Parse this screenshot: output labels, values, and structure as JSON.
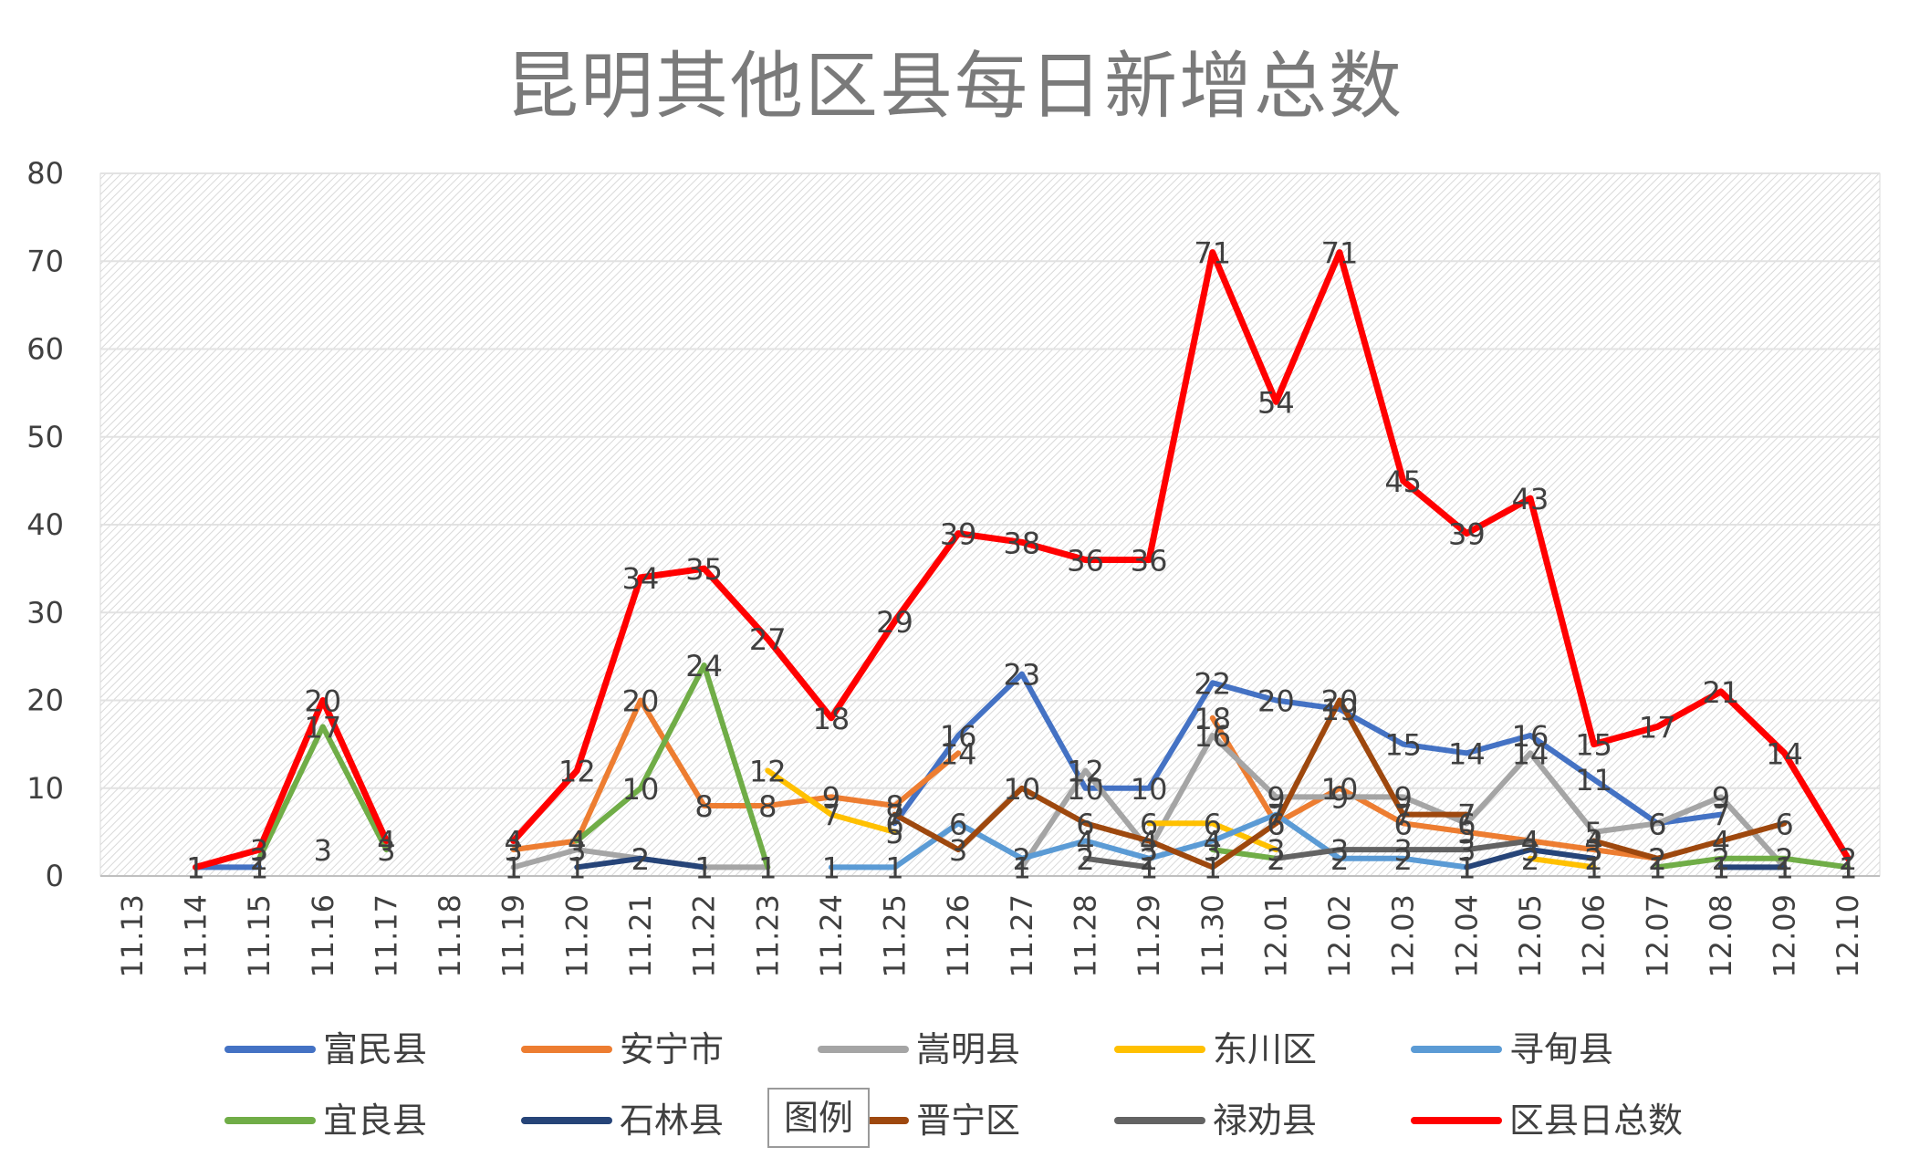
{
  "chart_data": {
    "type": "line",
    "title": "昆明其他区县每日新增总数",
    "ylim": [
      0,
      80
    ],
    "yticks": [
      0,
      10,
      20,
      30,
      40,
      50,
      60,
      70,
      80
    ],
    "grid": true,
    "legend_placement": "bottom",
    "legend_badge": "图例",
    "categories": [
      "11.13",
      "11.14",
      "11.15",
      "11.16",
      "11.17",
      "11.18",
      "11.19",
      "11.20",
      "11.21",
      "11.22",
      "11.23",
      "11.24",
      "11.25",
      "11.26",
      "11.27",
      "11.28",
      "11.29",
      "11.30",
      "12.01",
      "12.02",
      "12.03",
      "12.04",
      "12.05",
      "12.06",
      "12.07",
      "12.08",
      "12.09",
      "12.10"
    ],
    "series": [
      {
        "name": "富民县",
        "color": "#4472C4",
        "values": [
          null,
          1,
          1,
          null,
          null,
          null,
          null,
          null,
          null,
          null,
          null,
          null,
          6,
          16,
          23,
          10,
          10,
          22,
          20,
          19,
          15,
          14,
          16,
          11,
          6,
          7,
          null,
          null
        ]
      },
      {
        "name": "安宁市",
        "color": "#ED7D31",
        "values": [
          null,
          null,
          null,
          null,
          null,
          null,
          3,
          4,
          20,
          8,
          8,
          9,
          8,
          14,
          null,
          null,
          null,
          18,
          6,
          10,
          6,
          5,
          4,
          3,
          2,
          null,
          null,
          1
        ]
      },
      {
        "name": "嵩明县",
        "color": "#A5A5A5",
        "values": [
          null,
          null,
          null,
          null,
          null,
          null,
          1,
          3,
          2,
          1,
          1,
          null,
          null,
          null,
          1,
          12,
          3,
          16,
          9,
          9,
          9,
          6,
          14,
          5,
          6,
          9,
          1,
          null
        ]
      },
      {
        "name": "东川区",
        "color": "#FFC000",
        "values": [
          null,
          null,
          null,
          null,
          null,
          null,
          null,
          null,
          null,
          null,
          12,
          7,
          5,
          null,
          null,
          null,
          6,
          6,
          3,
          null,
          null,
          null,
          2,
          1,
          null,
          null,
          null,
          null
        ]
      },
      {
        "name": "寻甸县",
        "color": "#5B9BD5",
        "values": [
          null,
          null,
          null,
          null,
          null,
          null,
          null,
          null,
          null,
          null,
          null,
          1,
          1,
          6,
          2,
          4,
          2,
          4,
          7,
          2,
          2,
          1,
          null,
          null,
          null,
          null,
          null,
          null
        ]
      },
      {
        "name": "宜良县",
        "color": "#70AD47",
        "values": [
          null,
          null,
          2,
          17,
          3,
          null,
          null,
          4,
          10,
          24,
          1,
          null,
          null,
          null,
          null,
          null,
          null,
          3,
          2,
          null,
          null,
          null,
          null,
          null,
          1,
          2,
          2,
          1
        ]
      },
      {
        "name": "石林县",
        "color": "#264478",
        "values": [
          null,
          null,
          null,
          null,
          null,
          null,
          null,
          1,
          2,
          1,
          null,
          null,
          null,
          null,
          null,
          null,
          null,
          null,
          null,
          null,
          null,
          1,
          3,
          2,
          null,
          1,
          1,
          null
        ]
      },
      {
        "name": "晋宁区",
        "color": "#9E480E",
        "values": [
          null,
          null,
          null,
          null,
          null,
          null,
          null,
          null,
          null,
          null,
          null,
          null,
          7,
          3,
          10,
          6,
          4,
          1,
          6,
          20,
          7,
          7,
          null,
          4,
          2,
          4,
          6,
          null
        ]
      },
      {
        "name": "禄劝县",
        "color": "#636363",
        "values": [
          null,
          null,
          null,
          null,
          null,
          null,
          null,
          null,
          null,
          null,
          null,
          null,
          null,
          null,
          null,
          2,
          1,
          null,
          2,
          3,
          3,
          3,
          4,
          null,
          null,
          null,
          null,
          null
        ]
      },
      {
        "name": "区县日总数",
        "color": "#FF0000",
        "values": [
          null,
          1,
          3,
          20,
          4,
          null,
          4,
          12,
          34,
          35,
          27,
          18,
          29,
          39,
          38,
          36,
          36,
          71,
          54,
          71,
          45,
          39,
          43,
          15,
          17,
          21,
          14,
          2
        ]
      }
    ],
    "data_labels": [
      {
        "cat": "11.16",
        "value": 3,
        "text": "3"
      }
    ]
  }
}
